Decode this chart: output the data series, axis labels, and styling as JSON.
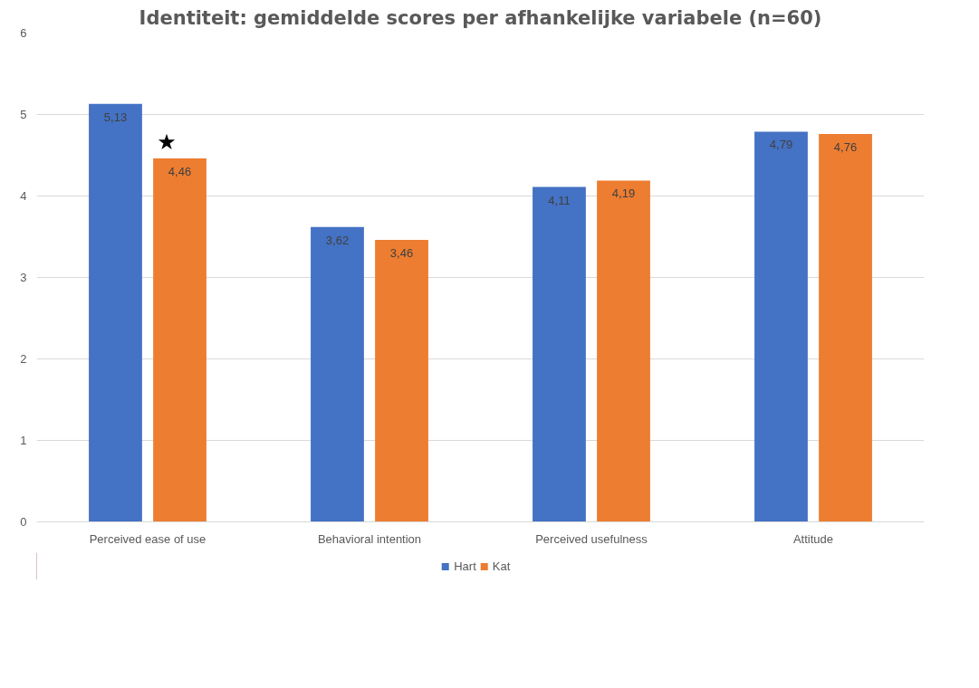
{
  "chart_data": {
    "type": "bar",
    "title": "Identiteit: gemiddelde scores per afhankelijke variabele (n=60)",
    "categories": [
      "Perceived ease of use",
      "Behavioral intention",
      "Perceived usefulness",
      "Attitude"
    ],
    "series": [
      {
        "name": "Hart",
        "color": "#4472c4",
        "values": [
          5.13,
          3.62,
          4.11,
          4.79
        ],
        "value_labels": [
          "5,13",
          "3,62",
          "4,11",
          "4,79"
        ]
      },
      {
        "name": "Kat",
        "color": "#ed7d31",
        "values": [
          4.46,
          3.46,
          4.19,
          4.76
        ],
        "value_labels": [
          "4,46",
          "3,46",
          "4,19",
          "4,76"
        ]
      }
    ],
    "ylim": [
      0,
      6
    ],
    "yticks": [
      0,
      1,
      2,
      3,
      4,
      5,
      6
    ],
    "grid": "y",
    "legend": "bottom",
    "annotations": [
      "★"
    ]
  }
}
